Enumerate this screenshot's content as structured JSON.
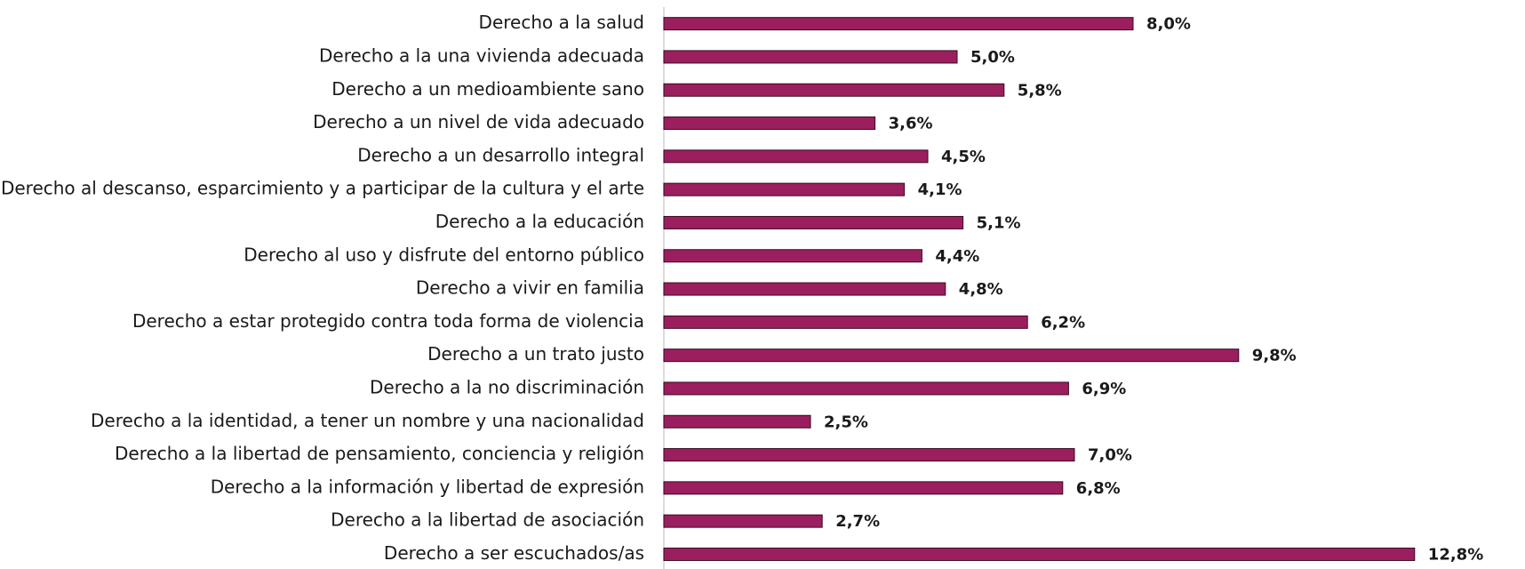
{
  "chart_data": {
    "type": "bar",
    "orientation": "horizontal",
    "categories": [
      "Derecho a la salud",
      "Derecho a la una vivienda adecuada",
      "Derecho a un medioambiente sano",
      "Derecho a un nivel de vida adecuado",
      "Derecho a un desarrollo integral",
      "Derecho al descanso, esparcimiento y a participar de la cultura y el arte",
      "Derecho a la educación",
      "Derecho al uso y disfrute del entorno público",
      "Derecho a vivir en familia",
      "Derecho a estar protegido contra toda forma de violencia",
      "Derecho a un trato justo",
      "Derecho a la no discriminación",
      "Derecho a la identidad, a tener un nombre y una nacionalidad",
      "Derecho a la libertad de pensamiento, conciencia y religión",
      "Derecho a la información y libertad de expresión",
      "Derecho a la libertad de asociación",
      "Derecho a ser escuchados/as"
    ],
    "values": [
      8.0,
      5.0,
      5.8,
      3.6,
      4.5,
      4.1,
      5.1,
      4.4,
      4.8,
      6.2,
      9.8,
      6.9,
      2.5,
      7.0,
      6.8,
      2.7,
      12.8
    ],
    "value_labels": [
      "8,0%",
      "5,0%",
      "5,8%",
      "3,6%",
      "4,5%",
      "4,1%",
      "5,1%",
      "4,4%",
      "4,8%",
      "6,2%",
      "9,8%",
      "6,9%",
      "2,5%",
      "7,0%",
      "6,8%",
      "2,7%",
      "12,8%"
    ],
    "color": "#9b1f5f",
    "xlim": [
      0,
      14
    ]
  }
}
